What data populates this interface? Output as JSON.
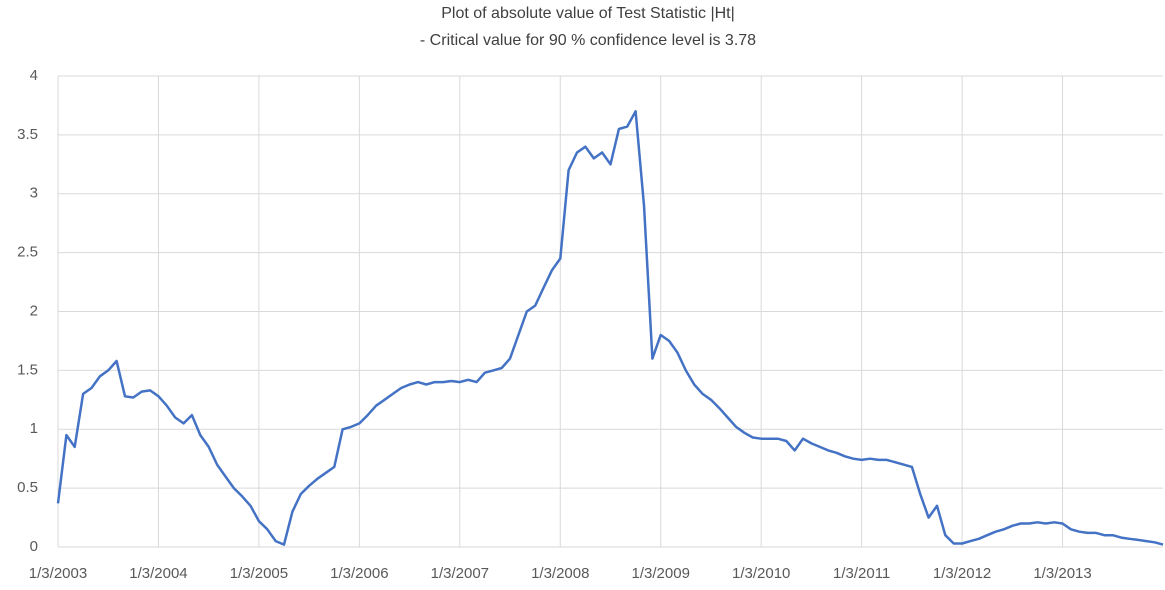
{
  "chart_data": {
    "type": "line",
    "title": "Plot of absolute value of Test Statistic |Ht|",
    "subtitle": "- Critical value for 90 % confidence level is 3.78",
    "categories": [
      "1/3/2003",
      null,
      null,
      null,
      null,
      null,
      null,
      null,
      null,
      null,
      null,
      null,
      "1/3/2004",
      null,
      null,
      null,
      null,
      null,
      null,
      null,
      null,
      null,
      null,
      null,
      "1/3/2005",
      null,
      null,
      null,
      null,
      null,
      null,
      null,
      null,
      null,
      null,
      null,
      "1/3/2006",
      null,
      null,
      null,
      null,
      null,
      null,
      null,
      null,
      null,
      null,
      null,
      "1/3/2007",
      null,
      null,
      null,
      null,
      null,
      null,
      null,
      null,
      null,
      null,
      null,
      "1/3/2008",
      null,
      null,
      null,
      null,
      null,
      null,
      null,
      null,
      null,
      null,
      null,
      "1/3/2009",
      null,
      null,
      null,
      null,
      null,
      null,
      null,
      null,
      null,
      null,
      null,
      "1/3/2010",
      null,
      null,
      null,
      null,
      null,
      null,
      null,
      null,
      null,
      null,
      null,
      "1/3/2011",
      null,
      null,
      null,
      null,
      null,
      null,
      null,
      null,
      null,
      null,
      null,
      "1/3/2012",
      null,
      null,
      null,
      null,
      null,
      null,
      null,
      null,
      null,
      null,
      null,
      "1/3/2013",
      null,
      null,
      null,
      null,
      null,
      null,
      null,
      null,
      null,
      null,
      null,
      null
    ],
    "series": [
      {
        "name": "|Ht|",
        "color": "#4472c4",
        "values": [
          0.37,
          0.95,
          0.85,
          1.3,
          1.35,
          1.45,
          1.5,
          1.58,
          1.28,
          1.27,
          1.32,
          1.33,
          1.28,
          1.2,
          1.1,
          1.05,
          1.12,
          0.95,
          0.85,
          0.7,
          0.6,
          0.5,
          0.43,
          0.35,
          0.22,
          0.15,
          0.05,
          0.02,
          0.3,
          0.45,
          0.52,
          0.58,
          0.63,
          0.68,
          1.0,
          1.02,
          1.05,
          1.12,
          1.2,
          1.25,
          1.3,
          1.35,
          1.38,
          1.4,
          1.38,
          1.4,
          1.4,
          1.41,
          1.4,
          1.42,
          1.4,
          1.48,
          1.5,
          1.52,
          1.6,
          1.8,
          2.0,
          2.05,
          2.2,
          2.35,
          2.45,
          3.2,
          3.35,
          3.4,
          3.3,
          3.35,
          3.25,
          3.55,
          3.57,
          3.7,
          2.9,
          1.6,
          1.8,
          1.75,
          1.65,
          1.5,
          1.38,
          1.3,
          1.25,
          1.18,
          1.1,
          1.02,
          0.97,
          0.93,
          0.92,
          0.92,
          0.92,
          0.9,
          0.82,
          0.92,
          0.88,
          0.85,
          0.82,
          0.8,
          0.77,
          0.75,
          0.74,
          0.75,
          0.74,
          0.74,
          0.72,
          0.7,
          0.68,
          0.45,
          0.25,
          0.35,
          0.1,
          0.03,
          0.03,
          0.05,
          0.07,
          0.1,
          0.13,
          0.15,
          0.18,
          0.2,
          0.2,
          0.21,
          0.2,
          0.21,
          0.2,
          0.15,
          0.13,
          0.12,
          0.12,
          0.1,
          0.1,
          0.08,
          0.07,
          0.06,
          0.05,
          0.04,
          0.02
        ]
      }
    ],
    "ylim": [
      0,
      4
    ],
    "yticks": [
      0,
      0.5,
      1,
      1.5,
      2,
      2.5,
      3,
      3.5,
      4
    ],
    "grid": true
  }
}
